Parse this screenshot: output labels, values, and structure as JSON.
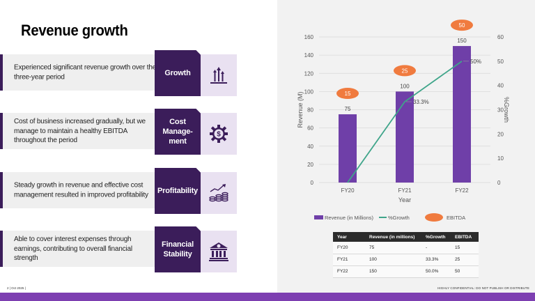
{
  "slide": {
    "title": "Revenue growth",
    "footer_left": "2 | Oct 2025 |",
    "footer_right": "HIGHLY CONFIDENTIAL: DO NOT PUBLISH OR DISTRIBUTE"
  },
  "rows": [
    {
      "text": "Experienced significant revenue growth over the three-year period",
      "label": "Growth",
      "icon": "arrows-up-icon"
    },
    {
      "text": "Cost of business increased gradually, but we manage to maintain a healthy EBITDA throughout the period",
      "label": "Cost Manage- ment",
      "icon": "dollar-gear-icon"
    },
    {
      "text": "Steady growth in revenue and effective cost management resulted in improved profitability",
      "label": "Profitability",
      "icon": "coins-growth-icon"
    },
    {
      "text": "Able to cover interest expenses through earnings, contributing to overall financial strength",
      "label": "Financial Stability",
      "icon": "bank-icon"
    }
  ],
  "chart_data": {
    "type": "bar",
    "categories": [
      "FY20",
      "FY21",
      "FY22"
    ],
    "series": [
      {
        "name": "Revenue (in Millions)",
        "type": "bar",
        "values": [
          75,
          100,
          150
        ],
        "labels": [
          "75",
          "100",
          "150"
        ],
        "color": "#6f3fa8"
      },
      {
        "name": "%Growth",
        "type": "line",
        "axis": "right",
        "values": [
          0,
          33.3,
          50
        ],
        "labels": [
          "",
          "33.3%",
          "50%"
        ],
        "color": "#3fa58a"
      },
      {
        "name": "EBITDA",
        "type": "marker",
        "values": [
          15,
          25,
          50
        ],
        "labels": [
          "15",
          "25",
          "50"
        ],
        "color": "#f07b3f"
      }
    ],
    "xlabel": "Year",
    "ylabel": "Revenue (M)",
    "y2label": "%Growth",
    "ylim": [
      0,
      160
    ],
    "yticks": [
      "0",
      "20",
      "40",
      "60",
      "80",
      "100",
      "120",
      "140",
      "160"
    ],
    "y2lim": [
      0,
      60
    ],
    "y2ticks": [
      "0",
      "10",
      "20",
      "30",
      "40",
      "50",
      "60"
    ],
    "legend": [
      "Revenue (in Millions)",
      "%Growth",
      "EBITDA"
    ]
  },
  "table": {
    "headers": [
      "Year",
      "Revenue (in millions)",
      "%Growth",
      "EBITDA"
    ],
    "rows": [
      [
        "FY20",
        "75",
        "-",
        "15"
      ],
      [
        "FY21",
        "100",
        "33.3%",
        "25"
      ],
      [
        "FY22",
        "150",
        "50.0%",
        "50"
      ]
    ]
  },
  "colors": {
    "accent": "#3b1d5a",
    "bar": "#6f3fa8",
    "line": "#3fa58a",
    "ebitda": "#f07b3f",
    "bottom_bar": "#7d3fb1"
  }
}
